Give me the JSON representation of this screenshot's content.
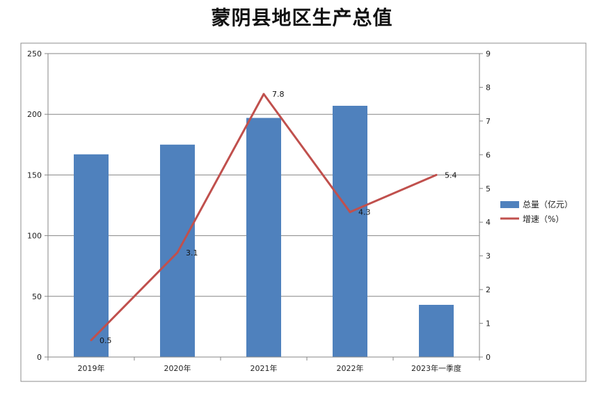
{
  "chart_data": {
    "type": "bar",
    "title": "蒙阴县地区生产总值",
    "categories": [
      "2019年",
      "2020年",
      "2021年",
      "2022年",
      "2023年一季度"
    ],
    "series": [
      {
        "name": "总量（亿元）",
        "type": "bar",
        "axis": "left",
        "color": "#4F81BD",
        "values": [
          167,
          175,
          197,
          207,
          43
        ]
      },
      {
        "name": "增速（%）",
        "type": "line",
        "axis": "right",
        "color": "#C0504D",
        "values": [
          0.5,
          3.1,
          7.8,
          4.3,
          5.4
        ]
      }
    ],
    "data_labels": [
      "0.5",
      "3.1",
      "7.8",
      "4.3",
      "5.4"
    ],
    "y_left": {
      "range": [
        0,
        250
      ],
      "ticks": [
        "0",
        "50",
        "100",
        "150",
        "200",
        "250"
      ]
    },
    "y_right": {
      "range": [
        0,
        9
      ],
      "ticks": [
        "0",
        "1",
        "2",
        "3",
        "4",
        "5",
        "6",
        "7",
        "8",
        "9"
      ]
    },
    "grid": true,
    "legend_position": "right"
  }
}
